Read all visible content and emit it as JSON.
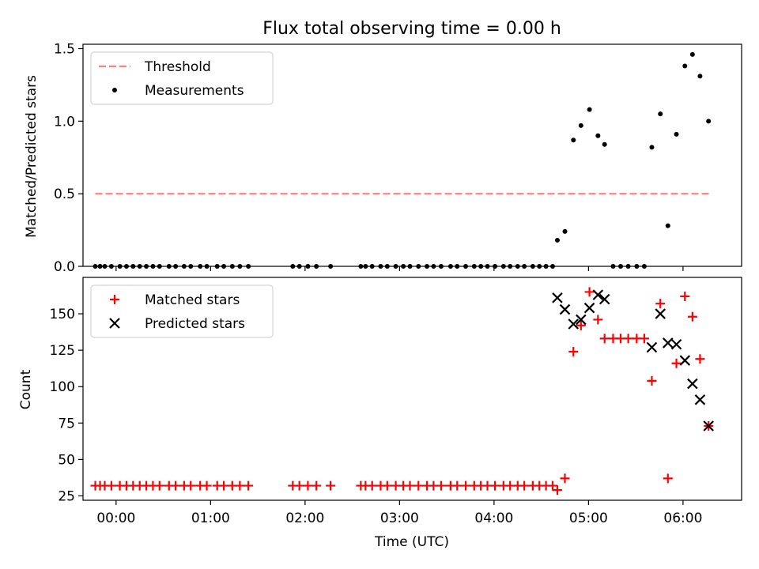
{
  "chart_data": [
    {
      "type": "scatter",
      "title": "Flux total observing time = 0.00 h",
      "xlabel": "",
      "ylabel": "Matched/Predicted stars",
      "xlim": [
        -0.35,
        6.62
      ],
      "ylim": [
        0,
        1.53
      ],
      "x_ticks": [
        "00:00",
        "01:00",
        "02:00",
        "03:00",
        "04:00",
        "05:00",
        "06:00"
      ],
      "y_ticks": [
        "0.0",
        "0.5",
        "1.0",
        "1.5"
      ],
      "legend": "top-left",
      "series": [
        {
          "name": "Threshold",
          "style": "dashed-line",
          "color": "#ff7f7f",
          "x": [
            -0.22,
            6.28
          ],
          "y": [
            0.5,
            0.5
          ]
        },
        {
          "name": "Measurements",
          "style": "dot",
          "color": "#000000",
          "x": [
            -0.22,
            -0.17,
            -0.12,
            -0.05,
            0.04,
            0.11,
            0.18,
            0.25,
            0.32,
            0.39,
            0.46,
            0.56,
            0.63,
            0.72,
            0.79,
            0.89,
            0.96,
            1.07,
            1.14,
            1.23,
            1.31,
            1.4,
            1.87,
            1.94,
            2.03,
            2.12,
            2.27,
            2.59,
            2.64,
            2.71,
            2.8,
            2.87,
            2.96,
            3.04,
            3.11,
            3.2,
            3.29,
            3.36,
            3.44,
            3.54,
            3.61,
            3.7,
            3.79,
            3.86,
            3.93,
            4.01,
            4.1,
            4.17,
            4.25,
            4.32,
            4.41,
            4.48,
            4.55,
            4.62,
            4.67,
            4.75,
            4.84,
            4.92,
            5.01,
            5.1,
            5.17,
            5.26,
            5.34,
            5.42,
            5.51,
            5.59,
            5.67,
            5.76,
            5.84,
            5.93,
            6.02,
            6.1,
            6.18,
            6.27
          ],
          "y": [
            0,
            0,
            0,
            0,
            0,
            0,
            0,
            0,
            0,
            0,
            0,
            0,
            0,
            0,
            0,
            0,
            0,
            0,
            0,
            0,
            0,
            0,
            0,
            0,
            0,
            0,
            0,
            0,
            0,
            0,
            0,
            0,
            0,
            0,
            0,
            0,
            0,
            0,
            0,
            0,
            0,
            0,
            0,
            0,
            0,
            0,
            0,
            0,
            0,
            0,
            0,
            0,
            0,
            0,
            0.18,
            0.24,
            0.87,
            0.97,
            1.08,
            0.9,
            0.84,
            0,
            0,
            0,
            0,
            0,
            0.82,
            1.05,
            0.28,
            0.91,
            1.38,
            1.46,
            1.31,
            1.0
          ]
        }
      ]
    },
    {
      "type": "scatter",
      "title": "",
      "xlabel": "Time (UTC)",
      "ylabel": "Count",
      "xlim": [
        -0.35,
        6.62
      ],
      "ylim": [
        22,
        175
      ],
      "x_ticks": [
        "00:00",
        "01:00",
        "02:00",
        "03:00",
        "04:00",
        "05:00",
        "06:00"
      ],
      "y_ticks": [
        "25",
        "50",
        "75",
        "100",
        "125",
        "150"
      ],
      "legend": "top-left",
      "series": [
        {
          "name": "Matched stars",
          "style": "plus",
          "color": "#ff0000",
          "x": [
            -0.22,
            -0.17,
            -0.12,
            -0.05,
            0.04,
            0.11,
            0.18,
            0.25,
            0.32,
            0.39,
            0.46,
            0.56,
            0.63,
            0.72,
            0.79,
            0.89,
            0.96,
            1.07,
            1.14,
            1.23,
            1.31,
            1.4,
            1.87,
            1.94,
            2.03,
            2.12,
            2.27,
            2.59,
            2.64,
            2.71,
            2.8,
            2.87,
            2.96,
            3.04,
            3.11,
            3.2,
            3.29,
            3.36,
            3.44,
            3.54,
            3.61,
            3.7,
            3.79,
            3.86,
            3.93,
            4.01,
            4.1,
            4.17,
            4.25,
            4.32,
            4.41,
            4.48,
            4.55,
            4.62,
            4.67,
            4.75,
            4.84,
            4.92,
            5.01,
            5.1,
            5.17,
            5.26,
            5.34,
            5.42,
            5.51,
            5.59,
            5.67,
            5.76,
            5.84,
            5.93,
            6.02,
            6.1,
            6.18,
            6.27
          ],
          "y": [
            32,
            32,
            32,
            32,
            32,
            32,
            32,
            32,
            32,
            32,
            32,
            32,
            32,
            32,
            32,
            32,
            32,
            32,
            32,
            32,
            32,
            32,
            32,
            32,
            32,
            32,
            32,
            32,
            32,
            32,
            32,
            32,
            32,
            32,
            32,
            32,
            32,
            32,
            32,
            32,
            32,
            32,
            32,
            32,
            32,
            32,
            32,
            32,
            32,
            32,
            32,
            32,
            32,
            32,
            29,
            37,
            124,
            142,
            165,
            146,
            133,
            133,
            133,
            133,
            133,
            133,
            104,
            157,
            37,
            116,
            162,
            148,
            119,
            73
          ]
        },
        {
          "name": "Predicted stars",
          "style": "x",
          "color": "#000000",
          "x": [
            4.67,
            4.75,
            4.84,
            4.92,
            5.01,
            5.1,
            5.17,
            5.67,
            5.76,
            5.84,
            5.93,
            6.02,
            6.1,
            6.18,
            6.27
          ],
          "y": [
            161,
            153,
            143,
            146,
            154,
            163,
            160,
            127,
            150,
            130,
            129,
            118,
            102,
            91,
            73
          ]
        }
      ]
    }
  ]
}
